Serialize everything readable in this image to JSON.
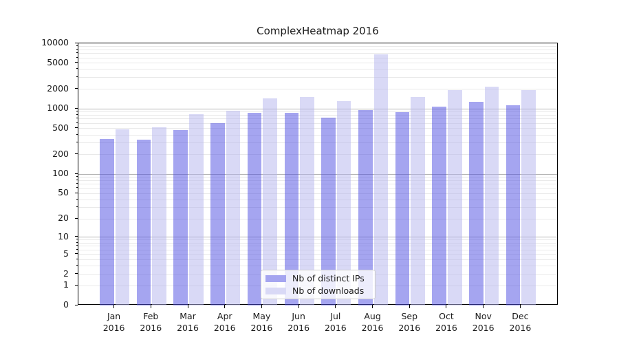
{
  "chart_data": {
    "type": "bar",
    "title": "ComplexHeatmap 2016",
    "scale": "log1p",
    "ylim": [
      0,
      10000
    ],
    "yticks": [
      10000,
      5000,
      2000,
      1000,
      500,
      200,
      100,
      50,
      20,
      10,
      5,
      2,
      1,
      0
    ],
    "grid": true,
    "legend_position": "lower center",
    "categories": [
      {
        "label": "Jan",
        "sub": "2016"
      },
      {
        "label": "Feb",
        "sub": "2016"
      },
      {
        "label": "Mar",
        "sub": "2016"
      },
      {
        "label": "Apr",
        "sub": "2016"
      },
      {
        "label": "May",
        "sub": "2016"
      },
      {
        "label": "Jun",
        "sub": "2016"
      },
      {
        "label": "Jul",
        "sub": "2016"
      },
      {
        "label": "Aug",
        "sub": "2016"
      },
      {
        "label": "Sep",
        "sub": "2016"
      },
      {
        "label": "Oct",
        "sub": "2016"
      },
      {
        "label": "Nov",
        "sub": "2016"
      },
      {
        "label": "Dec",
        "sub": "2016"
      }
    ],
    "series": [
      {
        "name": "Nb of distinct IPs",
        "slug": "distinct-ips",
        "color": "#a5a5f0",
        "values": [
          345,
          335,
          475,
          605,
          870,
          860,
          730,
          950,
          890,
          1080,
          1280,
          1140
        ]
      },
      {
        "name": "Nb of downloads",
        "slug": "downloads",
        "color": "#d9d9f6",
        "values": [
          485,
          520,
          820,
          930,
          1450,
          1500,
          1300,
          6800,
          1530,
          1950,
          2200,
          1950
        ]
      }
    ]
  }
}
